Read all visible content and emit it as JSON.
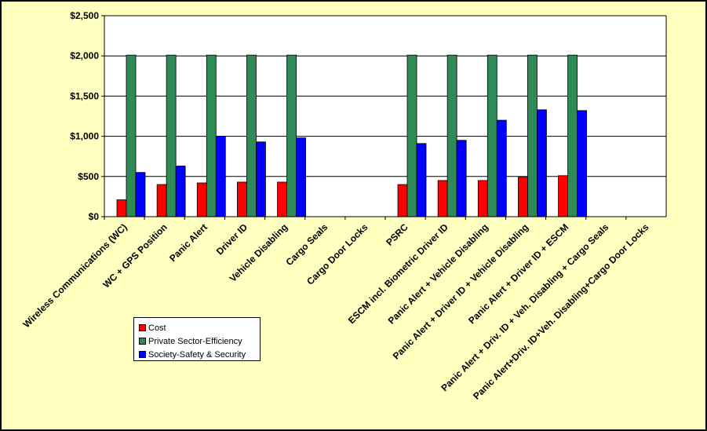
{
  "chart_data": {
    "type": "bar",
    "title": "",
    "xlabel": "",
    "ylabel": "",
    "ylim": [
      0,
      2500
    ],
    "yticks": [
      "$0",
      "$500",
      "$1,000",
      "$1,500",
      "$2,000",
      "$2,500"
    ],
    "grid": true,
    "legend_position": "bottom-left",
    "categories": [
      "Wireless Communications (WC)",
      "WC + GPS Position",
      "Panic Alert",
      "Driver ID",
      "Vehicle Disabling",
      "Cargo Seals",
      "Cargo Door Locks",
      "PSRC",
      "ESCM incl. Biometric Driver ID",
      "Panic Alert + Vehicle Disabling",
      "Panic Alert + Driver ID + Vehicle Disabling",
      "Panic Alert + Driver ID + ESCM",
      "Panic Alert + Driv. ID + Veh. Disabling + Cargo Seals",
      "Panic Alert+Driv. ID+Veh. Disabling+Cargo Door Locks"
    ],
    "series": [
      {
        "name": "Cost",
        "color": "#ff0000",
        "values": [
          210,
          400,
          420,
          430,
          430,
          0,
          0,
          400,
          450,
          450,
          490,
          510,
          0,
          0
        ]
      },
      {
        "name": "Private Sector-Efficiency",
        "color": "#2e8b57",
        "values": [
          2010,
          2010,
          2010,
          2010,
          2010,
          0,
          0,
          2010,
          2010,
          2010,
          2010,
          2010,
          0,
          0
        ]
      },
      {
        "name": "Society-Safety & Security",
        "color": "#0000ff",
        "values": [
          550,
          630,
          1000,
          930,
          980,
          0,
          0,
          910,
          950,
          1200,
          1330,
          1320,
          0,
          0
        ]
      }
    ]
  }
}
